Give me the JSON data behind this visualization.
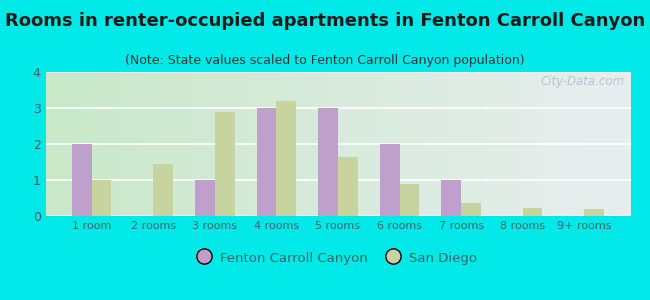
{
  "title": "Rooms in renter-occupied apartments in Fenton Carroll Canyon",
  "subtitle": "(Note: State values scaled to Fenton Carroll Canyon population)",
  "categories": [
    "1 room",
    "2 rooms",
    "3 rooms",
    "4 rooms",
    "5 rooms",
    "6 rooms",
    "7 rooms",
    "8 rooms",
    "9+ rooms"
  ],
  "fenton_values": [
    2.0,
    0.0,
    1.0,
    3.0,
    3.0,
    2.0,
    1.0,
    0.0,
    0.0
  ],
  "sandiego_values": [
    1.0,
    1.45,
    2.9,
    3.2,
    1.65,
    0.9,
    0.35,
    0.22,
    0.2
  ],
  "fenton_color": "#bf9fcc",
  "sandiego_color": "#c8d4a0",
  "background_color": "#00e8e8",
  "ylim": [
    0,
    4
  ],
  "yticks": [
    0,
    1,
    2,
    3,
    4
  ],
  "title_fontsize": 13,
  "subtitle_fontsize": 9,
  "legend_label_fenton": "Fenton Carroll Canyon",
  "legend_label_sandiego": "San Diego",
  "watermark": "City-Data.com",
  "tick_label_color": "#336666",
  "title_color": "#1a1a1a"
}
